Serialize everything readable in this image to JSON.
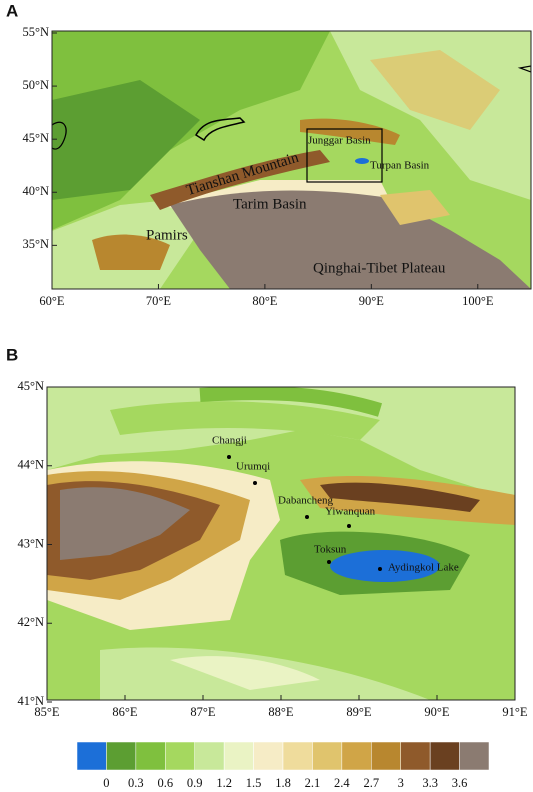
{
  "panel_a": {
    "label": "A",
    "x_ticks": [
      "60°E",
      "70°E",
      "80°E",
      "90°E",
      "100°E"
    ],
    "y_ticks": [
      "55°N",
      "50°N",
      "45°N",
      "40°N",
      "35°N"
    ],
    "places": [
      "Junggar Basin",
      "Turpan Basin",
      "Tianshan Mountain",
      "Tarim Basin",
      "Pamirs",
      "Qinghai-Tibet Plateau"
    ]
  },
  "panel_b": {
    "label": "B",
    "x_ticks": [
      "85°E",
      "86°E",
      "87°E",
      "88°E",
      "89°E",
      "90°E",
      "91°E"
    ],
    "y_ticks": [
      "45°N",
      "44°N",
      "43°N",
      "42°N",
      "41°N"
    ],
    "stations": [
      "Changji",
      "Urumqi",
      "Dabancheng",
      "Yiwanquan",
      "Toksun",
      "Aydingkol Lake"
    ]
  },
  "colorbar": {
    "labels": [
      0,
      0.3,
      0.6,
      0.9,
      1.2,
      1.5,
      1.8,
      2.1,
      2.4,
      2.7,
      3,
      3.3,
      3.6
    ],
    "colors": [
      "#1c6fd8",
      "#5c9e32",
      "#7fc03e",
      "#a5d85f",
      "#c8e89a",
      "#eaf3c4",
      "#f6ecc6",
      "#efdc9c",
      "#e0c46d",
      "#d0a547",
      "#b8872f",
      "#8f5a2b",
      "#6a4020",
      "#8b7b71"
    ]
  }
}
